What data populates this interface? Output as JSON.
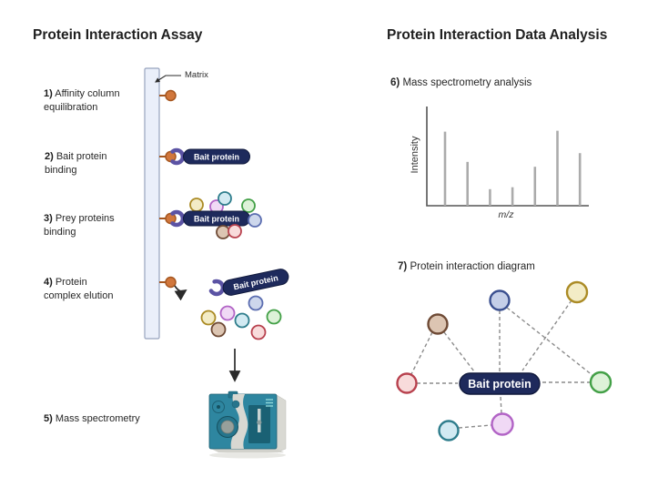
{
  "titles": {
    "left": "Protein Interaction Assay",
    "right": "Protein Interaction Data Analysis"
  },
  "steps": [
    {
      "num": "1)",
      "line1": "Affinity column",
      "line2": "equilibration"
    },
    {
      "num": "2)",
      "line1": "Bait protein",
      "line2": "binding"
    },
    {
      "num": "3)",
      "line1": "Prey proteins",
      "line2": "binding"
    },
    {
      "num": "4)",
      "line1": "Protein",
      "line2": "complex elution"
    },
    {
      "num": "5)",
      "line1": "Mass spectrometry",
      "line2": ""
    }
  ],
  "matrix_label": "Matrix",
  "bait_protein_label": "Bait protein",
  "analysis_steps": [
    {
      "num": "6)",
      "text": "Mass spectrometry analysis"
    },
    {
      "num": "7)",
      "text": "Protein interaction diagram"
    }
  ],
  "chart_data": {
    "type": "bar",
    "title": "Mass spectrometry analysis",
    "xlabel": "m/z",
    "ylabel": "Intensity",
    "x": [
      1,
      2,
      3,
      4,
      5,
      6,
      7
    ],
    "values": [
      0.76,
      0.45,
      0.17,
      0.19,
      0.4,
      0.77,
      0.54
    ],
    "ylim": [
      0,
      1
    ],
    "grid": false,
    "legend": "none",
    "bar_color": "#ababab",
    "axis_color": "#555555"
  },
  "network": {
    "center": "Bait protein",
    "nodes": [
      "blue",
      "yellow",
      "brown",
      "red",
      "green",
      "teal",
      "violet"
    ],
    "edges": [
      [
        "blue",
        "bait"
      ],
      [
        "blue",
        "green"
      ],
      [
        "yellow",
        "bait"
      ],
      [
        "brown",
        "bait"
      ],
      [
        "brown",
        "red"
      ],
      [
        "red",
        "bait"
      ],
      [
        "green",
        "bait"
      ],
      [
        "violet",
        "bait"
      ],
      [
        "teal",
        "violet"
      ]
    ]
  },
  "palette": {
    "yellow": {
      "fill": "#f3ecc6",
      "stroke": "#ab8b25"
    },
    "violet": {
      "fill": "#f0d9f5",
      "stroke": "#b264c6"
    },
    "teal": {
      "fill": "#d2eaf2",
      "stroke": "#2e7d8c"
    },
    "green": {
      "fill": "#ddf2d8",
      "stroke": "#43a047"
    },
    "lavender": {
      "fill": "#cdd7ec",
      "stroke": "#5b6db0"
    },
    "brown": {
      "fill": "#dcc5b2",
      "stroke": "#6e4a35"
    },
    "red": {
      "fill": "#f8dbdb",
      "stroke": "#b8414e"
    },
    "blue": {
      "fill": "#c5cfe8",
      "stroke": "#3a4f8f"
    },
    "orange": {
      "fill": "#d1773c",
      "stroke": "#a5561f"
    },
    "crescent": "#5b53a4",
    "bait_fill": "#1e2a5c",
    "bait_stroke": "#10193c",
    "bait_text": "#ffffff",
    "column_fill": "#eaeffa",
    "column_stroke": "#97a3bd",
    "edge": "#8c8c8c",
    "arrow": "#2b2b2b"
  }
}
